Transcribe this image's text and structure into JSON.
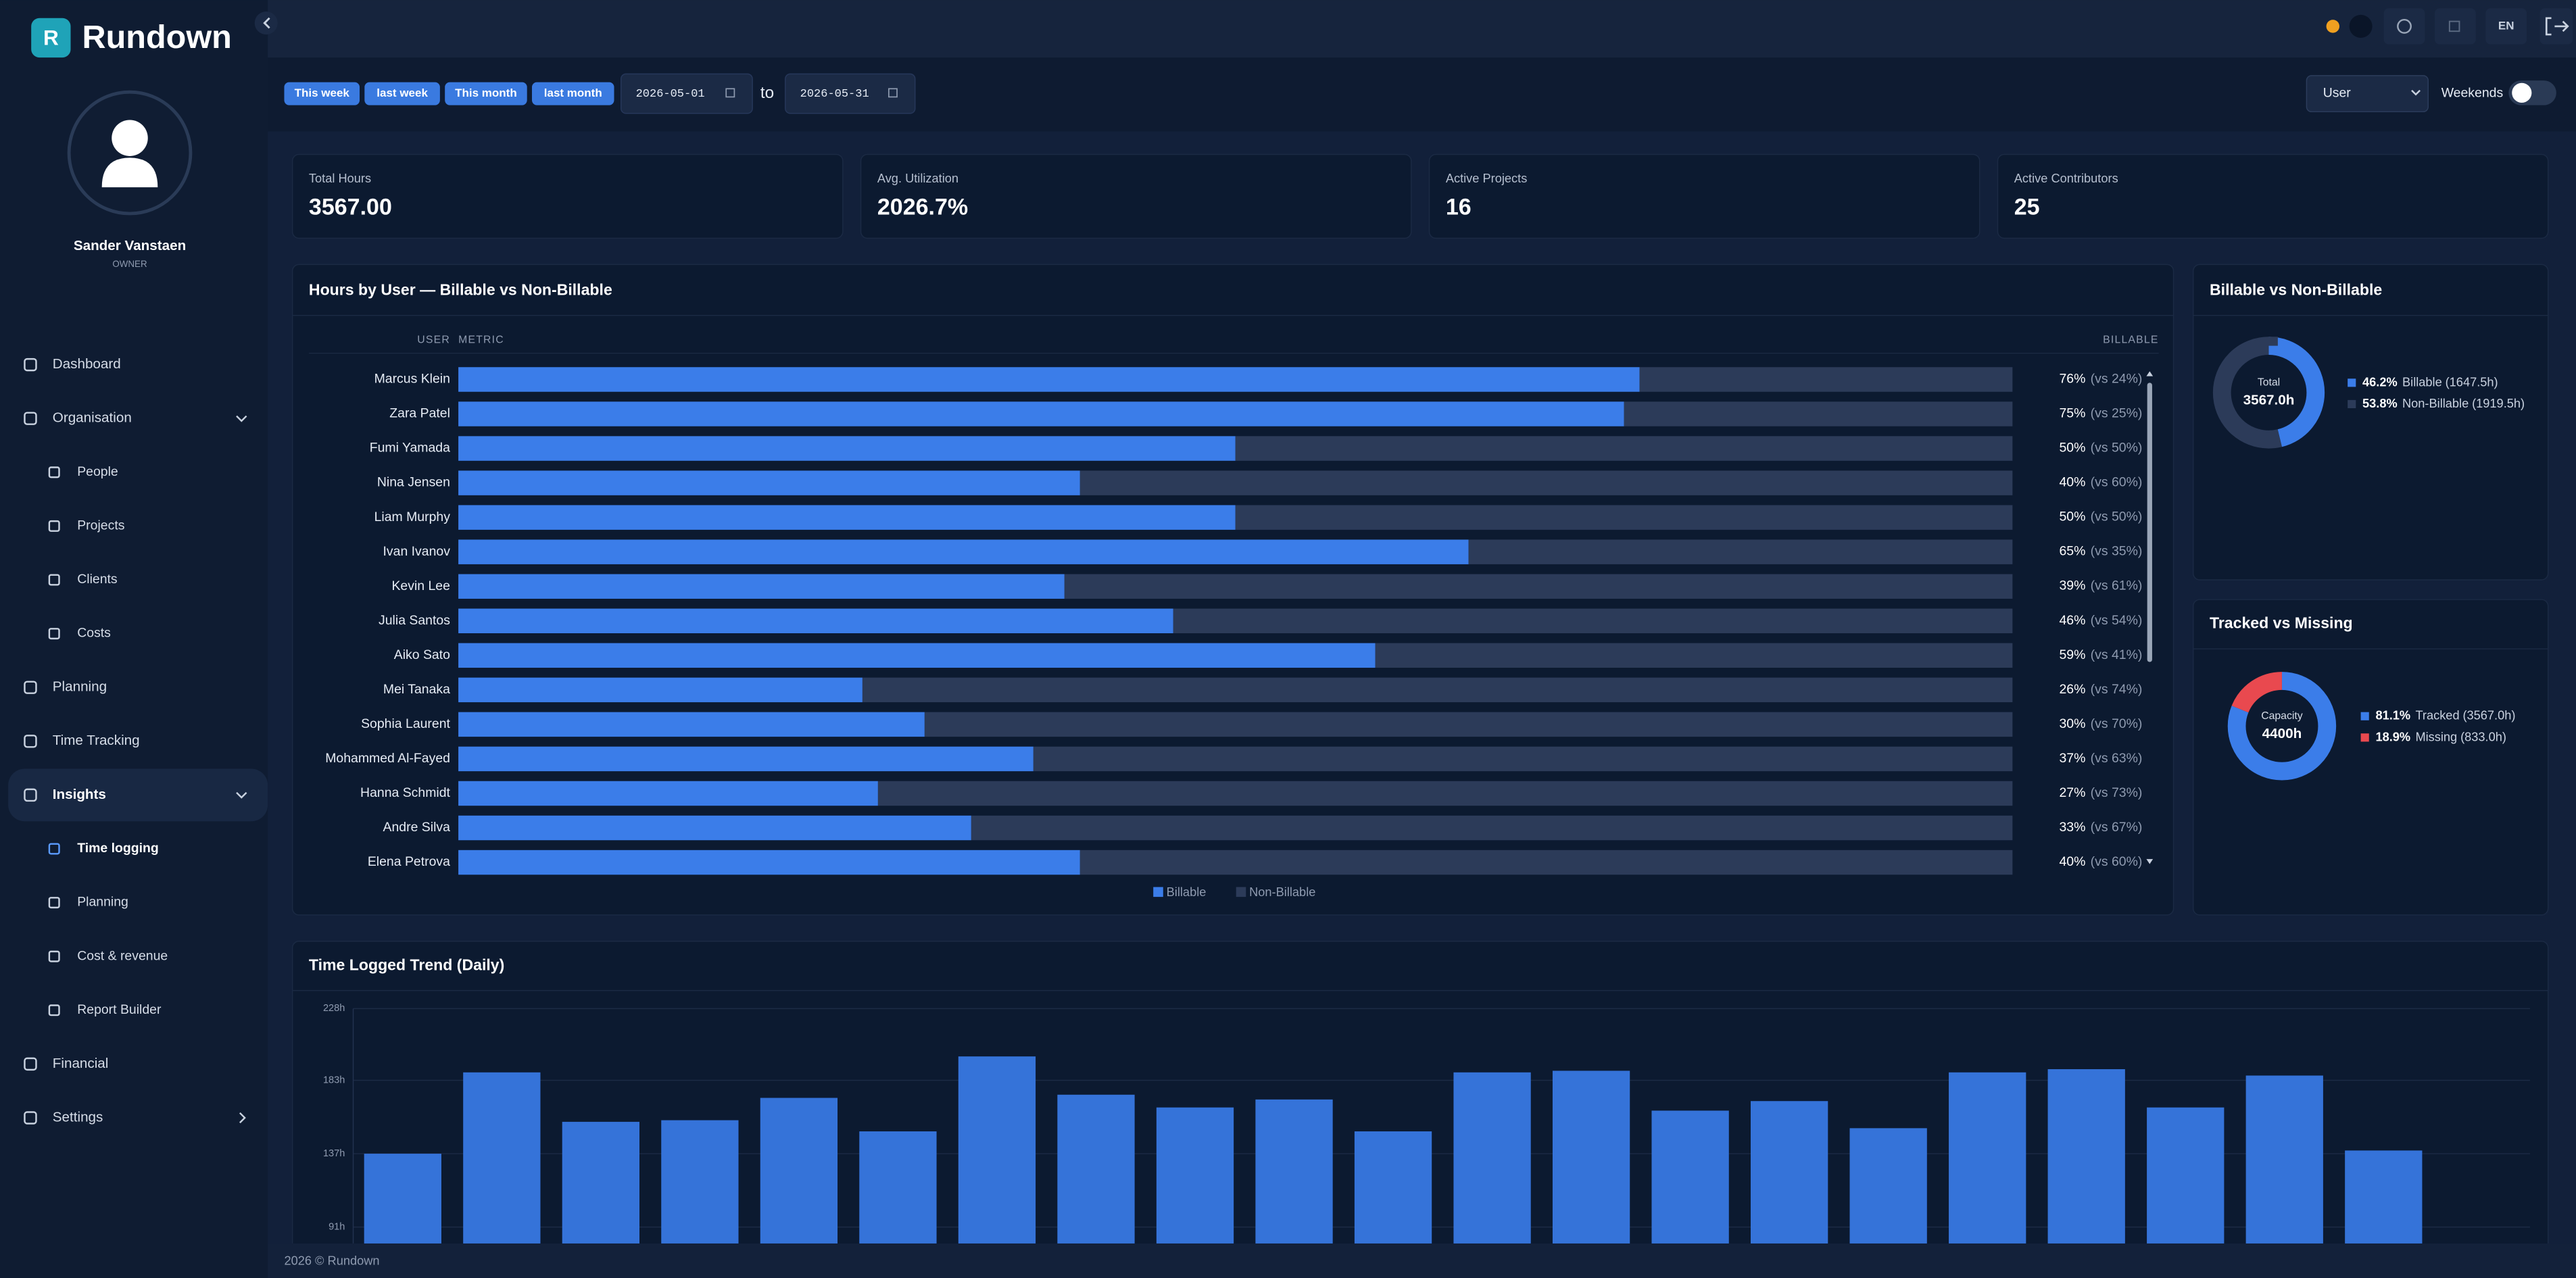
{
  "brand": {
    "logo": "R",
    "name": "Rundown"
  },
  "user": {
    "name": "Sander Vanstaen",
    "role": "OWNER"
  },
  "nav": [
    {
      "label": "Dashboard"
    },
    {
      "label": "Organisation",
      "children": [
        "People",
        "Projects",
        "Clients",
        "Costs"
      ]
    },
    {
      "label": "Planning"
    },
    {
      "label": "Time Tracking"
    },
    {
      "label": "Insights",
      "children": [
        "Time logging",
        "Planning",
        "Cost & revenue",
        "Report Builder"
      ]
    },
    {
      "label": "Financial"
    },
    {
      "label": "Settings"
    }
  ],
  "topbar": {
    "language": "EN"
  },
  "filters": {
    "presets": [
      "This week",
      "last week",
      "This month",
      "last month"
    ],
    "date_from": "2026-05-01",
    "separator": "to",
    "date_to": "2026-05-31",
    "group_by": "User",
    "weekends_label": "Weekends"
  },
  "kpis": [
    {
      "label": "Total Hours",
      "value": "3567.00"
    },
    {
      "label": "Avg. Utilization",
      "value": "2026.7%"
    },
    {
      "label": "Active Projects",
      "value": "16"
    },
    {
      "label": "Active Contributors",
      "value": "25"
    }
  ],
  "chart_data": [
    {
      "type": "hbar",
      "title": "Hours by User — Billable vs Non-Billable",
      "columns": [
        "USER",
        "METRIC",
        "BILLABLE"
      ],
      "categories": [
        "Marcus Klein",
        "Zara Patel",
        "Fumi Yamada",
        "Nina Jensen",
        "Liam Murphy",
        "Ivan Ivanov",
        "Kevin Lee",
        "Julia Santos",
        "Aiko Sato",
        "Mei Tanaka",
        "Sophia Laurent",
        "Mohammed Al-Fayed",
        "Hanna Schmidt",
        "Andre Silva",
        "Elena Petrova"
      ],
      "series": [
        {
          "name": "Billable",
          "color": "#3b7de9",
          "values": [
            76,
            75,
            50,
            40,
            50,
            65,
            39,
            46,
            59,
            26,
            30,
            37,
            27,
            33,
            40
          ],
          "value_labels": [
            "76%",
            "75%",
            "50%",
            "40%",
            "50%",
            "65%",
            "39%",
            "46%",
            "59%",
            "26%",
            "30%",
            "37%",
            "27%",
            "33%",
            "40%"
          ]
        },
        {
          "name": "Non-Billable",
          "color": "#2c3b59",
          "values": [
            24,
            25,
            50,
            60,
            50,
            35,
            61,
            54,
            41,
            74,
            70,
            63,
            73,
            67,
            60
          ],
          "value_labels": [
            "(vs 24%)",
            "(vs 25%)",
            "(vs 50%)",
            "(vs 60%)",
            "(vs 50%)",
            "(vs 35%)",
            "(vs 61%)",
            "(vs 54%)",
            "(vs 41%)",
            "(vs 74%)",
            "(vs 70%)",
            "(vs 63%)",
            "(vs 73%)",
            "(vs 67%)",
            "(vs 60%)"
          ]
        }
      ]
    },
    {
      "type": "donut",
      "title": "Billable vs Non-Billable",
      "center_label": "Total",
      "center_value": "3567.0h",
      "categories": [
        "Billable",
        "Non-Billable"
      ],
      "details": [
        "(1647.5h)",
        "(1919.5h)"
      ],
      "values": [
        46.2,
        53.8
      ],
      "value_labels": [
        "46.2%",
        "53.8%"
      ],
      "colors": [
        "#3b7de9",
        "#2c3b59"
      ]
    },
    {
      "type": "donut",
      "title": "Tracked vs Missing",
      "center_label": "Capacity",
      "center_value": "4400h",
      "categories": [
        "Tracked",
        "Missing"
      ],
      "details": [
        "(3567.0h)",
        "(833.0h)"
      ],
      "values": [
        81.1,
        18.9
      ],
      "value_labels": [
        "81.1%",
        "18.9%"
      ],
      "colors": [
        "#3b7de9",
        "#e9494f"
      ]
    },
    {
      "type": "bar",
      "title": "Time Logged Trend (Daily)",
      "categories": [
        null,
        null,
        null,
        null,
        null,
        null,
        null,
        null,
        null,
        null,
        null,
        null,
        null,
        null,
        null,
        null,
        null,
        null,
        null,
        null,
        null
      ],
      "values": [
        137,
        188,
        157,
        158,
        172,
        151,
        198,
        174,
        166,
        171,
        151,
        188,
        189,
        164,
        170,
        153,
        188,
        190,
        166,
        186,
        139
      ],
      "color": "#3573d9",
      "ylim": [
        91,
        228
      ],
      "yticks": [
        {
          "value": 91,
          "label": "91h"
        },
        {
          "value": 137,
          "label": "137h"
        },
        {
          "value": 183,
          "label": "183h"
        },
        {
          "value": 228,
          "label": "228h"
        }
      ],
      "grid": true
    }
  ],
  "footer": "2026 © Rundown"
}
